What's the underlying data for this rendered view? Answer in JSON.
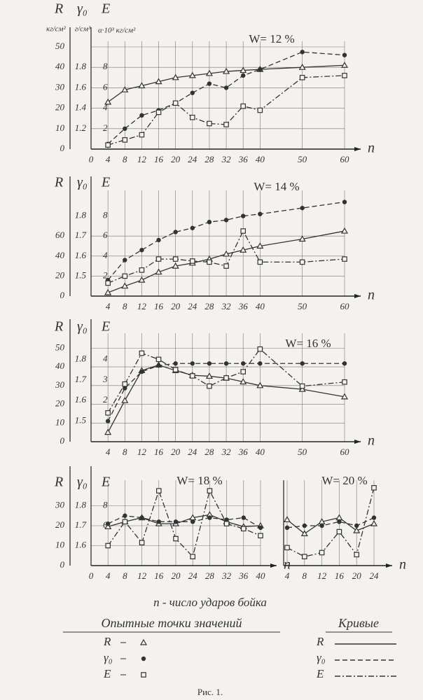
{
  "chart_data": [
    {
      "type": "line",
      "annotation": "W= 12 %",
      "xlabel": "n",
      "header": [
        "R",
        "γ₀",
        "E"
      ],
      "ylabel_units": "кг/см²",
      "y2label_units": "г/см³",
      "y3label_units": "α·10³ кг/см²",
      "x": [
        4,
        8,
        12,
        16,
        20,
        24,
        28,
        32,
        36,
        40,
        50,
        60
      ],
      "xlim": [
        0,
        60
      ],
      "xticks": [
        0,
        4,
        8,
        12,
        16,
        20,
        24,
        28,
        32,
        36,
        40,
        50,
        60
      ],
      "ylim": [
        0,
        50
      ],
      "yticks": [
        0,
        10,
        20,
        30,
        40,
        50
      ],
      "y2lim": [
        1.0,
        2.0
      ],
      "y2ticks": [
        1.2,
        1.4,
        1.6,
        1.8
      ],
      "y3lim": [
        0,
        10
      ],
      "y3ticks": [
        2,
        4,
        6,
        8
      ],
      "grid": true,
      "series": [
        {
          "name": "R",
          "axis": "y",
          "dash": "solid",
          "marker": "triangle",
          "color": "#333333",
          "values": [
            23,
            29,
            31,
            33,
            35,
            36,
            37,
            38,
            38.5,
            39,
            40,
            41
          ]
        },
        {
          "name": "γ₀",
          "axis": "y2",
          "dash": "dashed",
          "marker": "dot",
          "color": "#333333",
          "values": [
            1.05,
            1.2,
            1.33,
            1.38,
            1.45,
            1.55,
            1.64,
            1.6,
            1.72,
            1.78,
            1.95,
            1.92
          ]
        },
        {
          "name": "E",
          "axis": "y3",
          "dash": "dashdot",
          "marker": "square",
          "color": "#333333",
          "values": [
            0.4,
            0.9,
            1.4,
            3.6,
            4.5,
            3.1,
            2.5,
            2.4,
            4.2,
            3.8,
            7,
            7.2
          ]
        }
      ]
    },
    {
      "type": "line",
      "annotation": "W= 14 %",
      "xlabel": "n",
      "header": [
        "R",
        "γ₀",
        "E"
      ],
      "x": [
        4,
        8,
        12,
        16,
        20,
        24,
        28,
        32,
        36,
        40,
        50,
        60
      ],
      "xlim": [
        0,
        60
      ],
      "xticks": [
        4,
        8,
        12,
        16,
        20,
        24,
        28,
        32,
        36,
        40,
        50,
        60
      ],
      "ylim": [
        0,
        100
      ],
      "yticks": [
        0,
        20,
        40,
        60
      ],
      "y2lim": [
        1.4,
        1.9
      ],
      "y2ticks": [
        1.5,
        1.6,
        1.7,
        1.8
      ],
      "y3lim": [
        0,
        10
      ],
      "y3ticks": [
        2,
        4,
        6,
        8
      ],
      "grid": true,
      "series": [
        {
          "name": "R",
          "axis": "y",
          "dash": "solid",
          "marker": "triangle",
          "color": "#333333",
          "values": [
            3.5,
            10,
            16,
            24,
            30,
            33,
            37,
            42,
            46,
            50,
            57,
            65
          ]
        },
        {
          "name": "γ₀",
          "axis": "y2",
          "dash": "dashed",
          "marker": "dot",
          "color": "#333333",
          "values": [
            1.48,
            1.58,
            1.63,
            1.68,
            1.72,
            1.74,
            1.77,
            1.78,
            1.8,
            1.81,
            1.84,
            1.87
          ]
        },
        {
          "name": "E",
          "axis": "y3",
          "dash": "dashdot",
          "marker": "square",
          "color": "#333333",
          "values": [
            1.3,
            2,
            2.6,
            3.7,
            3.7,
            3.5,
            3.4,
            3,
            6.5,
            3.4,
            3.4,
            3.7
          ]
        }
      ]
    },
    {
      "type": "line",
      "annotation": "W= 16 %",
      "xlabel": "n",
      "header": [
        "R",
        "γ₀",
        "E"
      ],
      "x": [
        4,
        8,
        12,
        16,
        20,
        24,
        28,
        32,
        36,
        40,
        50,
        60
      ],
      "xlim": [
        0,
        60
      ],
      "xticks": [
        4,
        8,
        12,
        16,
        20,
        24,
        28,
        32,
        36,
        40,
        50,
        60
      ],
      "ylim": [
        0,
        55
      ],
      "yticks": [
        0,
        10,
        20,
        30,
        40,
        50
      ],
      "y2lim": [
        1.4,
        1.9
      ],
      "y2ticks": [
        1.5,
        1.6,
        1.7,
        1.8
      ],
      "y3lim": [
        0,
        5
      ],
      "y3ticks": [
        2,
        3,
        4
      ],
      "grid": true,
      "series": [
        {
          "name": "R",
          "axis": "y",
          "dash": "solid",
          "marker": "triangle",
          "color": "#333333",
          "values": [
            5,
            22,
            38,
            41,
            38,
            35.5,
            35,
            34,
            32,
            30,
            28,
            24
          ]
        },
        {
          "name": "γ₀",
          "axis": "y2",
          "dash": "dashed",
          "marker": "dot",
          "color": "#333333",
          "values": [
            1.5,
            1.66,
            1.74,
            1.77,
            1.78,
            1.78,
            1.78,
            1.78,
            1.78,
            1.78,
            1.78,
            1.78
          ]
        },
        {
          "name": "E",
          "axis": "y3",
          "dash": "dashdot",
          "marker": "square",
          "color": "#333333",
          "values": [
            1.4,
            2.8,
            4.3,
            4,
            3.5,
            3.2,
            2.7,
            3.1,
            3.4,
            4.5,
            2.7,
            2.9
          ]
        }
      ]
    },
    {
      "type": "line",
      "annotation": "W= 18 %",
      "xlabel": "n",
      "header": [
        "R",
        "γ₀",
        "E"
      ],
      "x": [
        4,
        8,
        12,
        16,
        20,
        24,
        28,
        32,
        36,
        40
      ],
      "xlim": [
        0,
        40
      ],
      "xticks": [
        0,
        4,
        8,
        12,
        16,
        20,
        24,
        28,
        32,
        36,
        40
      ],
      "ylim": [
        0,
        40
      ],
      "yticks": [
        0,
        10,
        20,
        30
      ],
      "y2lim": [
        1.5,
        1.9
      ],
      "y2ticks": [
        1.6,
        1.7,
        1.8
      ],
      "y3lim": [
        2,
        10
      ],
      "y3ticks": [
        6,
        8
      ],
      "grid": true,
      "series": [
        {
          "name": "R",
          "axis": "y",
          "dash": "solid",
          "marker": "triangle",
          "color": "#333333",
          "values": [
            19.5,
            22,
            24,
            21,
            21,
            24,
            25.5,
            22,
            19.5,
            20
          ]
        },
        {
          "name": "γ₀",
          "axis": "y2",
          "dash": "dashed",
          "marker": "dot",
          "color": "#333333",
          "values": [
            1.71,
            1.75,
            1.74,
            1.72,
            1.72,
            1.72,
            1.74,
            1.73,
            1.74,
            1.69
          ]
        },
        {
          "name": "E",
          "axis": "y3",
          "dash": "dashdot",
          "marker": "square",
          "color": "#333333",
          "values": [
            4,
            6.4,
            4.3,
            9.5,
            4.7,
            2.9,
            9.5,
            6.2,
            5.7,
            5
          ]
        }
      ]
    },
    {
      "type": "line",
      "annotation": "W= 20 %",
      "xlabel": "n",
      "x": [
        4,
        8,
        12,
        16,
        20,
        24
      ],
      "xlim": [
        4,
        24
      ],
      "xticks": [
        4,
        8,
        12,
        16,
        20,
        24
      ],
      "ylim": [
        0,
        40
      ],
      "y2lim": [
        1.5,
        1.9
      ],
      "y3lim": [
        2,
        10
      ],
      "grid": true,
      "series": [
        {
          "name": "R",
          "axis": "y",
          "dash": "solid",
          "marker": "triangle",
          "color": "#333333",
          "values": [
            23,
            16,
            22,
            24,
            17.5,
            21
          ]
        },
        {
          "name": "γ₀",
          "axis": "y2",
          "dash": "dashed",
          "marker": "dot",
          "color": "#333333",
          "values": [
            1.69,
            1.7,
            1.7,
            1.72,
            1.7,
            1.74
          ]
        },
        {
          "name": "E",
          "axis": "y3",
          "dash": "dashdot",
          "marker": "square",
          "color": "#333333",
          "values": [
            3.8,
            2.9,
            3.3,
            5.4,
            3.1,
            9.8
          ]
        }
      ]
    }
  ],
  "figure": {
    "xlabel": "n - число ударов бойка",
    "points_heading": "Опытные точки значений",
    "curves_heading": "Кривые",
    "caption": "Рис. 1."
  }
}
